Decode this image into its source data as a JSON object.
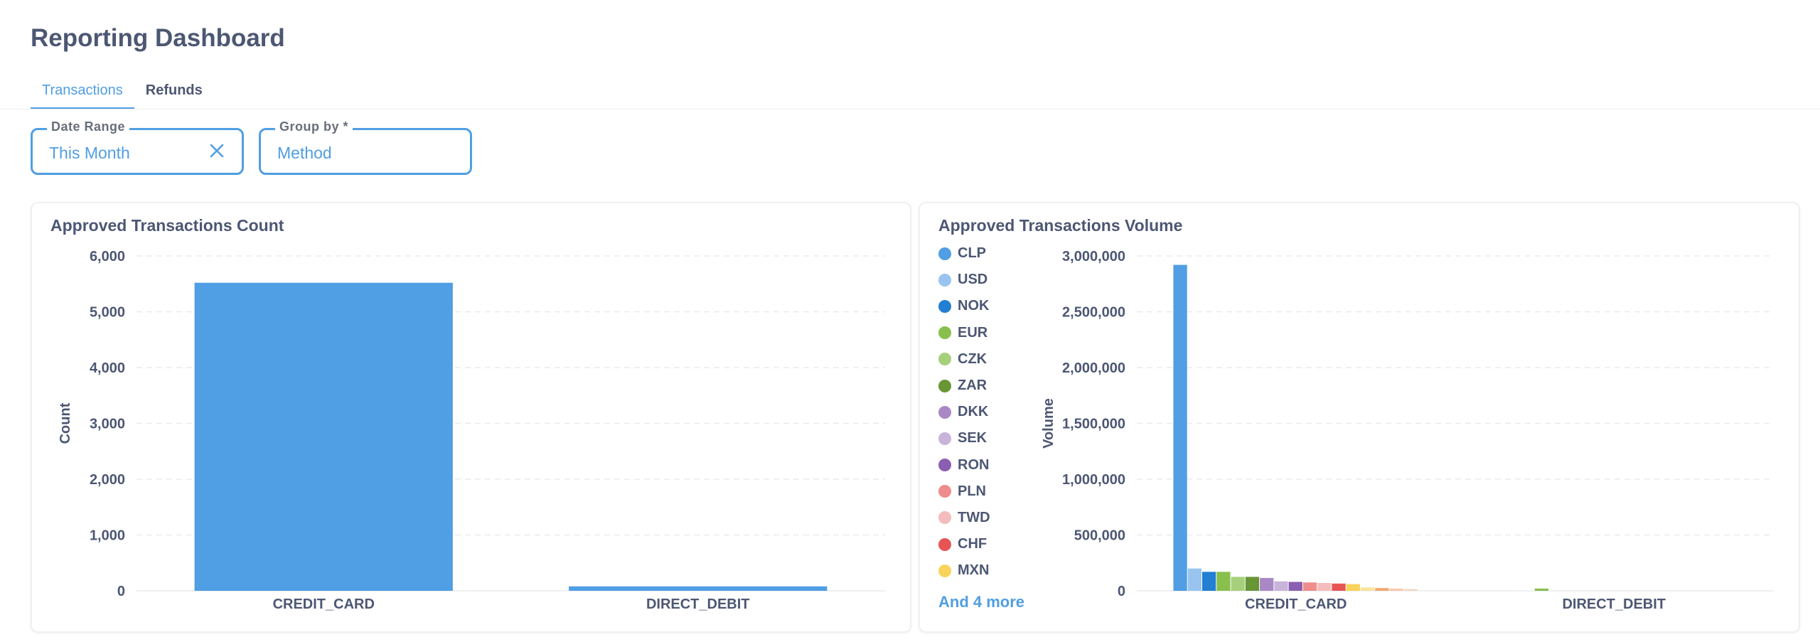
{
  "page": {
    "title": "Reporting Dashboard"
  },
  "tabs": [
    {
      "label": "Transactions",
      "active": true
    },
    {
      "label": "Refunds",
      "active": false
    }
  ],
  "filters": {
    "date_range": {
      "label": "Date Range",
      "value": "This Month"
    },
    "group_by": {
      "label": "Group by *",
      "value": "Method"
    }
  },
  "colors": {
    "accent": "#509ee3",
    "text": "#4c5773"
  },
  "cards": {
    "count": {
      "title": "Approved Transactions Count",
      "chart_data": {
        "type": "bar",
        "title": "Approved Transactions Count",
        "categories": [
          "CREDIT_CARD",
          "DIRECT_DEBIT"
        ],
        "values": [
          5520,
          80
        ],
        "xlabel": "",
        "ylabel": "Count",
        "ylim": [
          0,
          6000
        ],
        "yticks": [
          "0",
          "1,000",
          "2,000",
          "3,000",
          "4,000",
          "5,000",
          "6,000"
        ],
        "grid": true,
        "color": "#509ee3"
      }
    },
    "volume": {
      "title": "Approved Transactions Volume",
      "legend_more": "And 4 more",
      "chart_data": {
        "type": "bar",
        "title": "Approved Transactions Volume",
        "categories": [
          "CREDIT_CARD",
          "DIRECT_DEBIT"
        ],
        "xlabel": "",
        "ylabel": "Volume",
        "ylim": [
          0,
          3000000
        ],
        "yticks": [
          "0",
          "500,000",
          "1,000,000",
          "1,500,000",
          "2,000,000",
          "2,500,000",
          "3,000,000"
        ],
        "grid": true,
        "legend_position": "left",
        "series": [
          {
            "name": "CLP",
            "color": "#509ee3",
            "values": [
              2920000,
              0
            ]
          },
          {
            "name": "USD",
            "color": "#98c4ef",
            "values": [
              200000,
              0
            ]
          },
          {
            "name": "NOK",
            "color": "#227fd2",
            "values": [
              170000,
              0
            ]
          },
          {
            "name": "EUR",
            "color": "#88bf4d",
            "values": [
              170000,
              20000
            ]
          },
          {
            "name": "CZK",
            "color": "#a7d07c",
            "values": [
              125000,
              0
            ]
          },
          {
            "name": "ZAR",
            "color": "#689636",
            "values": [
              125000,
              0
            ]
          },
          {
            "name": "DKK",
            "color": "#a989c5",
            "values": [
              115000,
              0
            ]
          },
          {
            "name": "SEK",
            "color": "#c8b4da",
            "values": [
              85000,
              0
            ]
          },
          {
            "name": "RON",
            "color": "#8a5eb0",
            "values": [
              80000,
              0
            ]
          },
          {
            "name": "PLN",
            "color": "#ef8c8c",
            "values": [
              75000,
              0
            ]
          },
          {
            "name": "TWD",
            "color": "#f4bcbc",
            "values": [
              70000,
              0
            ]
          },
          {
            "name": "CHF",
            "color": "#e75454",
            "values": [
              65000,
              0
            ]
          },
          {
            "name": "MXN",
            "color": "#f9d45c",
            "values": [
              60000,
              0
            ]
          },
          {
            "name": "",
            "color": "#fbe499",
            "values": [
              30000,
              0
            ]
          },
          {
            "name": "",
            "color": "#f2a86f",
            "values": [
              25000,
              0
            ]
          },
          {
            "name": "",
            "color": "#f7c9a8",
            "values": [
              20000,
              0
            ]
          },
          {
            "name": "",
            "color": "#f4d7c4",
            "values": [
              15000,
              0
            ]
          }
        ]
      }
    }
  }
}
